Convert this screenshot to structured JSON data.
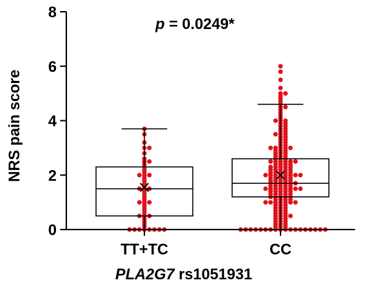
{
  "chart_data": {
    "type": "box",
    "title": "",
    "annotation": {
      "p_label": "p",
      "p_value_text": " = 0.0249*"
    },
    "xlabel": {
      "gene": "PLA2G7",
      "snp": " rs1051931"
    },
    "ylabel": "NRS pain score",
    "ylim": [
      0,
      8
    ],
    "yticks": [
      0,
      2,
      4,
      6,
      8
    ],
    "grid": false,
    "legend": "none",
    "point_color": "#e0121c",
    "categories": [
      "TT+TC",
      "CC"
    ],
    "series": [
      {
        "category": "TT+TC",
        "whisker_low": 0.0,
        "q1": 0.5,
        "median": 1.5,
        "q3": 2.3,
        "whisker_high": 3.7,
        "mean": 1.55,
        "points": [
          0,
          0,
          0,
          0,
          0,
          0,
          0,
          0,
          0.1,
          0.2,
          0.3,
          0.4,
          0.5,
          0.5,
          0.5,
          0.6,
          0.7,
          0.8,
          0.9,
          1.0,
          1.0,
          1.0,
          1.1,
          1.2,
          1.3,
          1.4,
          1.5,
          1.5,
          1.5,
          1.6,
          1.7,
          1.8,
          1.9,
          2.0,
          2.0,
          2.0,
          2.1,
          2.2,
          2.3,
          2.4,
          2.5,
          2.5,
          2.6,
          2.8,
          3.0,
          3.0,
          3.2,
          3.5,
          3.7
        ]
      },
      {
        "category": "CC",
        "whisker_low": 0.0,
        "q1": 1.2,
        "median": 1.7,
        "q3": 2.6,
        "whisker_high": 4.6,
        "mean": 2.0,
        "points": [
          0,
          0,
          0,
          0,
          0,
          0,
          0,
          0,
          0,
          0,
          0,
          0,
          0,
          0,
          0,
          0,
          0,
          0,
          0.1,
          0.1,
          0.1,
          0.2,
          0.2,
          0.2,
          0.3,
          0.3,
          0.3,
          0.4,
          0.4,
          0.4,
          0.5,
          0.5,
          0.5,
          0.5,
          0.6,
          0.6,
          0.6,
          0.7,
          0.7,
          0.7,
          0.8,
          0.8,
          0.8,
          0.9,
          0.9,
          0.9,
          1.0,
          1.0,
          1.0,
          1.0,
          1.0,
          1.0,
          1.0,
          1.1,
          1.1,
          1.1,
          1.1,
          1.2,
          1.2,
          1.2,
          1.2,
          1.2,
          1.3,
          1.3,
          1.3,
          1.3,
          1.3,
          1.4,
          1.4,
          1.4,
          1.4,
          1.4,
          1.5,
          1.5,
          1.5,
          1.5,
          1.5,
          1.5,
          1.5,
          1.5,
          1.6,
          1.6,
          1.6,
          1.6,
          1.6,
          1.7,
          1.7,
          1.7,
          1.7,
          1.7,
          1.7,
          1.8,
          1.8,
          1.8,
          1.8,
          1.8,
          1.9,
          1.9,
          1.9,
          1.9,
          1.9,
          2.0,
          2.0,
          2.0,
          2.0,
          2.0,
          2.0,
          2.0,
          2.0,
          2.1,
          2.1,
          2.1,
          2.1,
          2.1,
          2.2,
          2.2,
          2.2,
          2.2,
          2.2,
          2.3,
          2.3,
          2.3,
          2.3,
          2.3,
          2.4,
          2.4,
          2.4,
          2.4,
          2.5,
          2.5,
          2.5,
          2.5,
          2.5,
          2.5,
          2.6,
          2.6,
          2.6,
          2.7,
          2.7,
          2.7,
          2.8,
          2.8,
          2.8,
          2.9,
          2.9,
          2.9,
          3.0,
          3.0,
          3.0,
          3.0,
          3.0,
          3.1,
          3.1,
          3.2,
          3.2,
          3.3,
          3.3,
          3.4,
          3.4,
          3.5,
          3.5,
          3.5,
          3.6,
          3.6,
          3.7,
          3.7,
          3.8,
          3.8,
          3.9,
          3.9,
          4.0,
          4.0,
          4.0,
          4.1,
          4.2,
          4.3,
          4.4,
          4.5,
          4.5,
          4.6,
          4.7,
          4.8,
          4.9,
          5.0,
          5.0,
          5.2,
          5.5,
          5.8,
          6.0
        ]
      }
    ]
  }
}
